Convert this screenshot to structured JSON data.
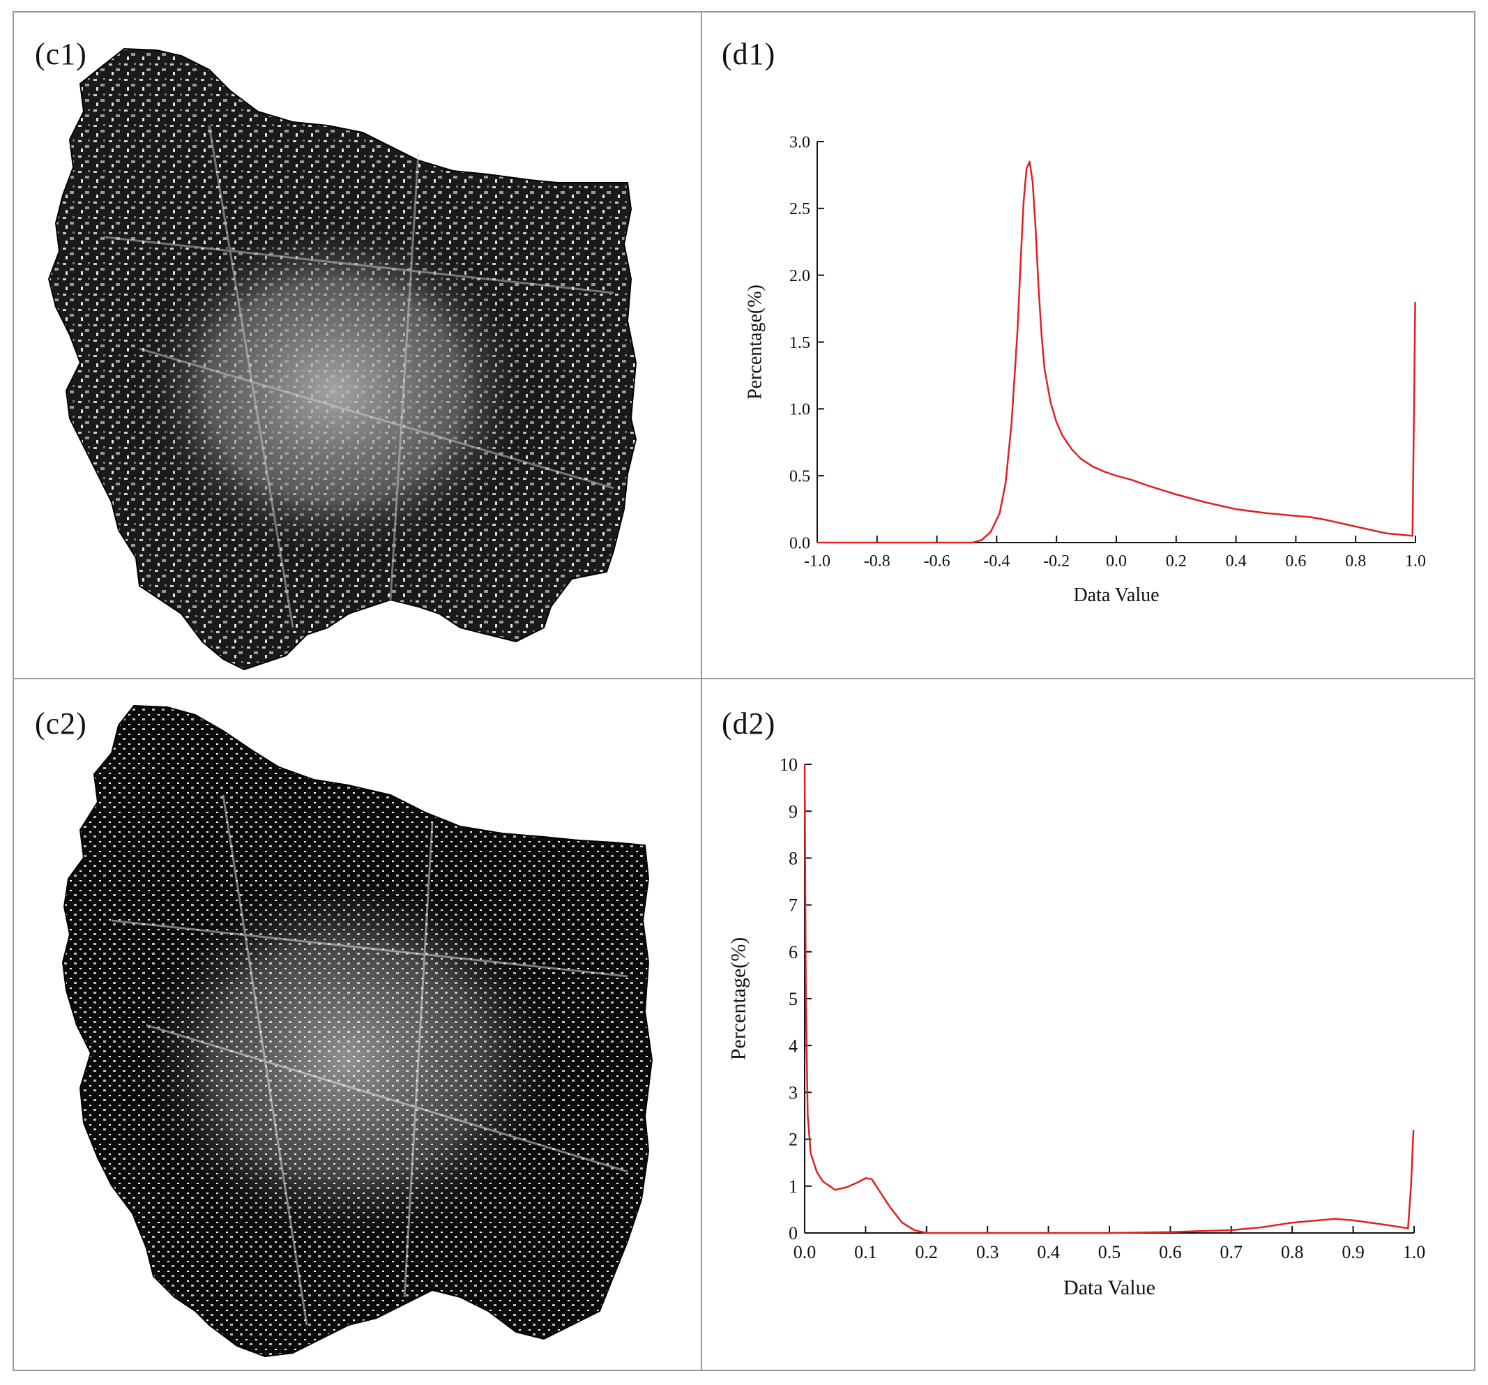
{
  "panels": {
    "c1": {
      "label": "(c1)"
    },
    "c2": {
      "label": "(c2)"
    },
    "d1": {
      "label": "(d1)"
    },
    "d2": {
      "label": "(d2)"
    }
  },
  "colors": {
    "curve": "#e02020",
    "map_dark": "#060606",
    "map_light": "#d8d8d8",
    "border": "#9a9a9a"
  },
  "chart_data": [
    {
      "id": "d1",
      "type": "line",
      "xlabel": "Data Value",
      "ylabel": "Percentage(%)",
      "xlim": [
        -1.0,
        1.0
      ],
      "ylim": [
        0.0,
        3.0
      ],
      "xticks": [
        "-1.0",
        "-0.8",
        "-0.6",
        "-0.4",
        "-0.2",
        "0.0",
        "0.2",
        "0.4",
        "0.6",
        "0.8",
        "1.0"
      ],
      "yticks": [
        "0.0",
        "0.5",
        "1.0",
        "1.5",
        "2.0",
        "2.5",
        "3.0"
      ],
      "grid": false,
      "series": [
        {
          "color": "#e02020",
          "x": [
            -1.0,
            -0.6,
            -0.48,
            -0.45,
            -0.42,
            -0.39,
            -0.37,
            -0.35,
            -0.33,
            -0.32,
            -0.31,
            -0.3,
            -0.29,
            -0.28,
            -0.27,
            -0.26,
            -0.25,
            -0.24,
            -0.22,
            -0.2,
            -0.18,
            -0.15,
            -0.12,
            -0.08,
            -0.04,
            0.0,
            0.05,
            0.1,
            0.2,
            0.3,
            0.4,
            0.5,
            0.6,
            0.65,
            0.7,
            0.8,
            0.9,
            0.99,
            0.995,
            0.999
          ],
          "y": [
            0.0,
            0.0,
            0.0,
            0.02,
            0.08,
            0.22,
            0.45,
            0.9,
            1.6,
            2.1,
            2.55,
            2.8,
            2.85,
            2.7,
            2.35,
            1.9,
            1.55,
            1.3,
            1.05,
            0.9,
            0.8,
            0.7,
            0.63,
            0.57,
            0.53,
            0.5,
            0.47,
            0.43,
            0.36,
            0.3,
            0.25,
            0.22,
            0.2,
            0.19,
            0.17,
            0.12,
            0.07,
            0.05,
            1.0,
            1.8
          ]
        }
      ]
    },
    {
      "id": "d2",
      "type": "line",
      "xlabel": "Data Value",
      "ylabel": "Percentage(%)",
      "xlim": [
        0.0,
        1.0
      ],
      "ylim": [
        0,
        10
      ],
      "xticks": [
        "0.0",
        "0.1",
        "0.2",
        "0.3",
        "0.4",
        "0.5",
        "0.6",
        "0.7",
        "0.8",
        "0.9",
        "1.0"
      ],
      "yticks": [
        "0",
        "1",
        "2",
        "3",
        "4",
        "5",
        "6",
        "7",
        "8",
        "9",
        "10"
      ],
      "grid": false,
      "series": [
        {
          "color": "#e02020",
          "x": [
            0.0,
            0.002,
            0.005,
            0.01,
            0.02,
            0.03,
            0.05,
            0.07,
            0.09,
            0.1,
            0.11,
            0.12,
            0.14,
            0.16,
            0.18,
            0.2,
            0.25,
            0.3,
            0.4,
            0.5,
            0.6,
            0.65,
            0.7,
            0.75,
            0.8,
            0.85,
            0.87,
            0.9,
            0.95,
            0.99,
            0.995,
            0.999
          ],
          "y": [
            10.0,
            5.0,
            2.5,
            1.7,
            1.3,
            1.1,
            0.92,
            0.98,
            1.1,
            1.17,
            1.15,
            0.95,
            0.55,
            0.22,
            0.06,
            0.0,
            0.0,
            0.0,
            0.0,
            0.0,
            0.02,
            0.04,
            0.06,
            0.12,
            0.22,
            0.28,
            0.3,
            0.27,
            0.18,
            0.1,
            1.0,
            2.2
          ]
        }
      ]
    }
  ]
}
